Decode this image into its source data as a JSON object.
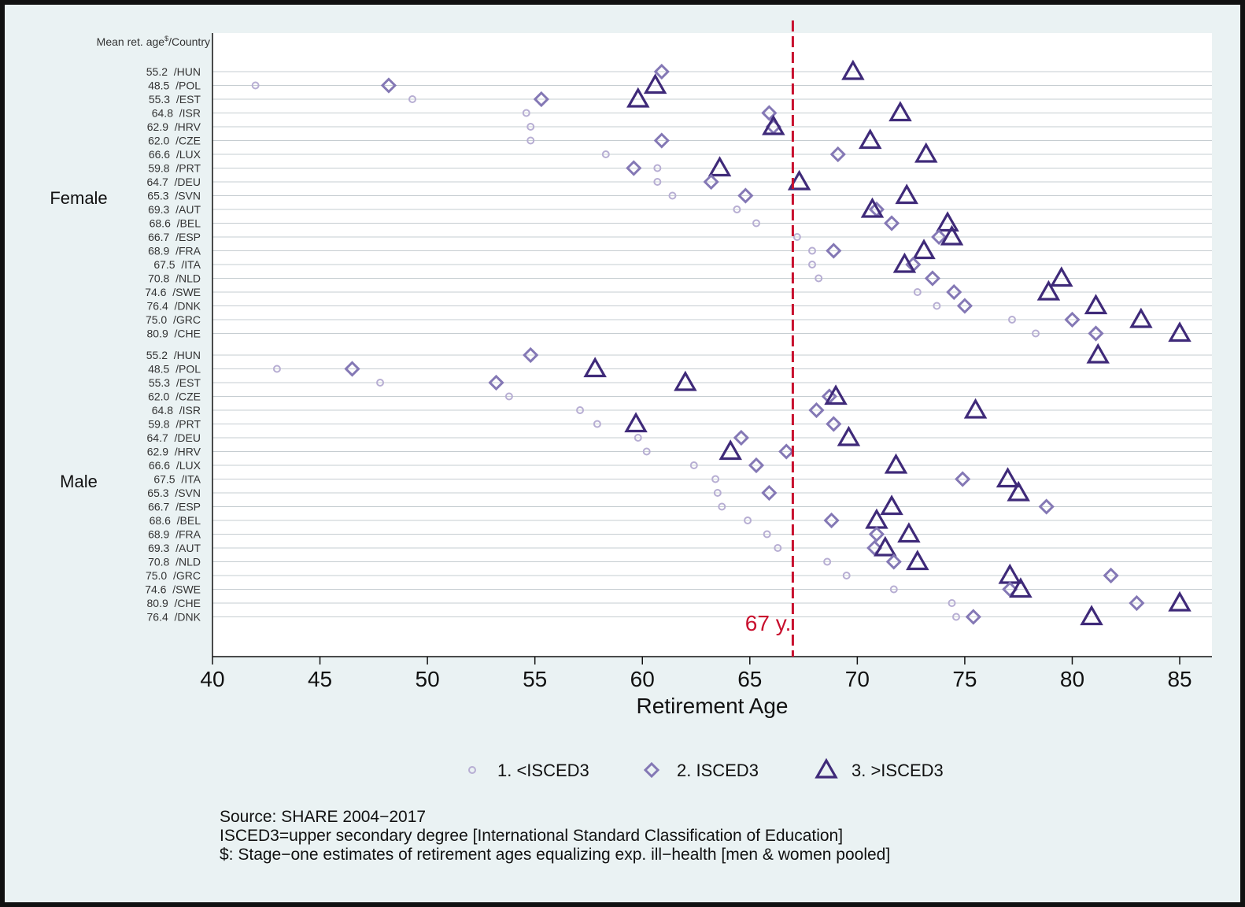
{
  "chart_data": {
    "type": "scatter",
    "orientation": "horizontal dot plot",
    "xlabel": "Retirement Age",
    "xlim": [
      40,
      86.5
    ],
    "xticks": [
      40,
      45,
      50,
      55,
      60,
      65,
      70,
      75,
      80,
      85
    ],
    "row_header": "Mean ret. age",
    "row_header_sup": "$",
    "row_header_suffix": "/Country",
    "reference_line": {
      "value": 67,
      "label": "67 y."
    },
    "legend": [
      {
        "key": "low",
        "label": "1. <ISCED3",
        "color": "#b7aed3"
      },
      {
        "key": "mid",
        "label": "2. ISCED3",
        "color": "#8478b5"
      },
      {
        "key": "high",
        "label": "3. >ISCED3",
        "color": "#3f2a79"
      }
    ],
    "groups": [
      {
        "name": "Female",
        "rows": [
          {
            "label": "55.2  /HUN",
            "low": null,
            "mid": 60.9,
            "high": 69.8
          },
          {
            "label": "48.5  /POL",
            "low": 42.0,
            "mid": 48.2,
            "high": 60.6
          },
          {
            "label": "55.3  /EST",
            "low": 49.3,
            "mid": 55.3,
            "high": 59.8
          },
          {
            "label": "64.8  /ISR",
            "low": 54.6,
            "mid": 65.9,
            "high": 72.0
          },
          {
            "label": "62.9  /HRV",
            "low": 54.8,
            "mid": 66.1,
            "high": 66.1
          },
          {
            "label": "62.0  /CZE",
            "low": 54.8,
            "mid": 60.9,
            "high": 70.6
          },
          {
            "label": "66.6  /LUX",
            "low": 58.3,
            "mid": 69.1,
            "high": 73.2
          },
          {
            "label": "59.8  /PRT",
            "low": 60.7,
            "mid": 59.6,
            "high": 63.6
          },
          {
            "label": "64.7  /DEU",
            "low": 60.7,
            "mid": 63.2,
            "high": 67.3
          },
          {
            "label": "65.3  /SVN",
            "low": 61.4,
            "mid": 64.8,
            "high": 72.3
          },
          {
            "label": "69.3  /AUT",
            "low": 64.4,
            "mid": 70.9,
            "high": 70.7
          },
          {
            "label": "68.6  /BEL",
            "low": 65.3,
            "mid": 71.6,
            "high": 74.2
          },
          {
            "label": "66.7  /ESP",
            "low": 67.2,
            "mid": 73.8,
            "high": 74.4
          },
          {
            "label": "68.9  /FRA",
            "low": 67.9,
            "mid": 68.9,
            "high": 73.1
          },
          {
            "label": "67.5  /ITA",
            "low": 67.9,
            "mid": 72.6,
            "high": 72.2
          },
          {
            "label": "70.8  /NLD",
            "low": 68.2,
            "mid": 73.5,
            "high": 79.5
          },
          {
            "label": "74.6  /SWE",
            "low": 72.8,
            "mid": 74.5,
            "high": 78.9
          },
          {
            "label": "76.4  /DNK",
            "low": 73.7,
            "mid": 75.0,
            "high": 81.1
          },
          {
            "label": "75.0  /GRC",
            "low": 77.2,
            "mid": 80.0,
            "high": 83.2
          },
          {
            "label": "80.9  /CHE",
            "low": 78.3,
            "mid": 81.1,
            "high": 85.0
          }
        ]
      },
      {
        "name": "Male",
        "rows": [
          {
            "label": "55.2  /HUN",
            "low": null,
            "mid": 54.8,
            "high": 81.2
          },
          {
            "label": "48.5  /POL",
            "low": 43.0,
            "mid": 46.5,
            "high": 57.8
          },
          {
            "label": "55.3  /EST",
            "low": 47.8,
            "mid": 53.2,
            "high": 62.0
          },
          {
            "label": "62.0  /CZE",
            "low": 53.8,
            "mid": 68.7,
            "high": 69.0
          },
          {
            "label": "64.8  /ISR",
            "low": 57.1,
            "mid": 68.1,
            "high": 75.5
          },
          {
            "label": "59.8  /PRT",
            "low": 57.9,
            "mid": 68.9,
            "high": 59.7
          },
          {
            "label": "64.7  /DEU",
            "low": 59.8,
            "mid": 64.6,
            "high": 69.6
          },
          {
            "label": "62.9  /HRV",
            "low": 60.2,
            "mid": 66.7,
            "high": 64.1
          },
          {
            "label": "66.6  /LUX",
            "low": 62.4,
            "mid": 65.3,
            "high": 71.8
          },
          {
            "label": "67.5  /ITA",
            "low": 63.4,
            "mid": 74.9,
            "high": 77.0
          },
          {
            "label": "65.3  /SVN",
            "low": 63.5,
            "mid": 65.9,
            "high": 77.5
          },
          {
            "label": "66.7  /ESP",
            "low": 63.7,
            "mid": 78.8,
            "high": 71.6
          },
          {
            "label": "68.6  /BEL",
            "low": 64.9,
            "mid": 68.8,
            "high": 70.9
          },
          {
            "label": "68.9  /FRA",
            "low": 65.8,
            "mid": 70.9,
            "high": 72.4
          },
          {
            "label": "69.3  /AUT",
            "low": 66.3,
            "mid": 70.8,
            "high": 71.3
          },
          {
            "label": "70.8  /NLD",
            "low": 68.6,
            "mid": 71.7,
            "high": 72.8
          },
          {
            "label": "75.0  /GRC",
            "low": 69.5,
            "mid": 81.8,
            "high": 77.1
          },
          {
            "label": "74.6  /SWE",
            "low": 71.7,
            "mid": 77.1,
            "high": 77.6
          },
          {
            "label": "80.9  /CHE",
            "low": 74.4,
            "mid": 83.0,
            "high": 85.0
          },
          {
            "label": "76.4  /DNK",
            "low": 74.6,
            "mid": 75.4,
            "high": 80.9
          }
        ]
      }
    ]
  },
  "notes": {
    "source": "Source: SHARE 2004−2017",
    "isced": "ISCED3=upper secondary degree [International Standard Classification of Education]",
    "dollar": "$: Stage−one estimates of retirement ages  equalizing exp. ill−health [men & women pooled]"
  }
}
